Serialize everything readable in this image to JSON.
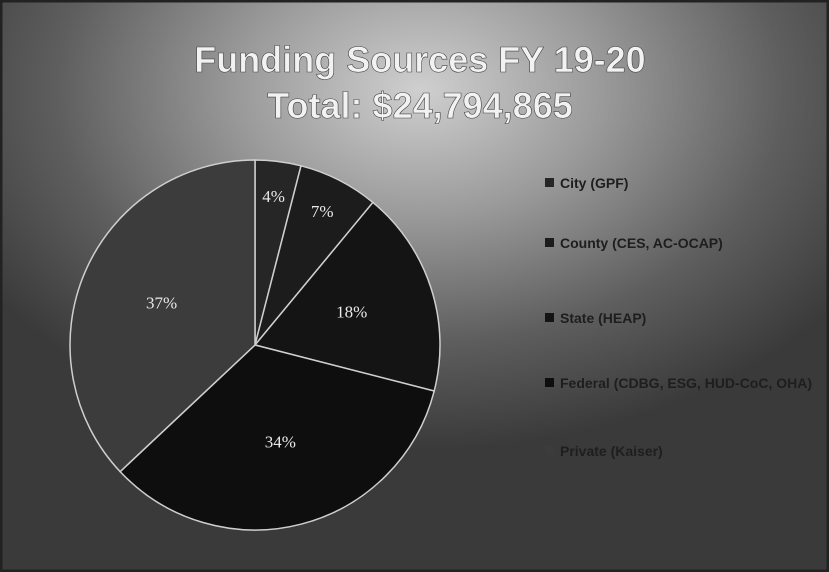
{
  "chart_data": {
    "type": "pie",
    "title": "Funding Sources FY 19-20",
    "subtitle": "Total: $24,794,865",
    "categories": [
      "City (GPF)",
      "County (CES, AC-OCAP)",
      "State (HEAP)",
      "Federal (CDBG, ESG, HUD-CoC, OHA)",
      "Private (Kaiser)"
    ],
    "values": [
      4,
      7,
      18,
      34,
      37
    ],
    "value_labels": [
      "4%",
      "7%",
      "18%",
      "34%",
      "37%"
    ],
    "colors": [
      "#262626",
      "#1c1c1c",
      "#141414",
      "#0e0e0e",
      "#3c3c3c"
    ]
  }
}
